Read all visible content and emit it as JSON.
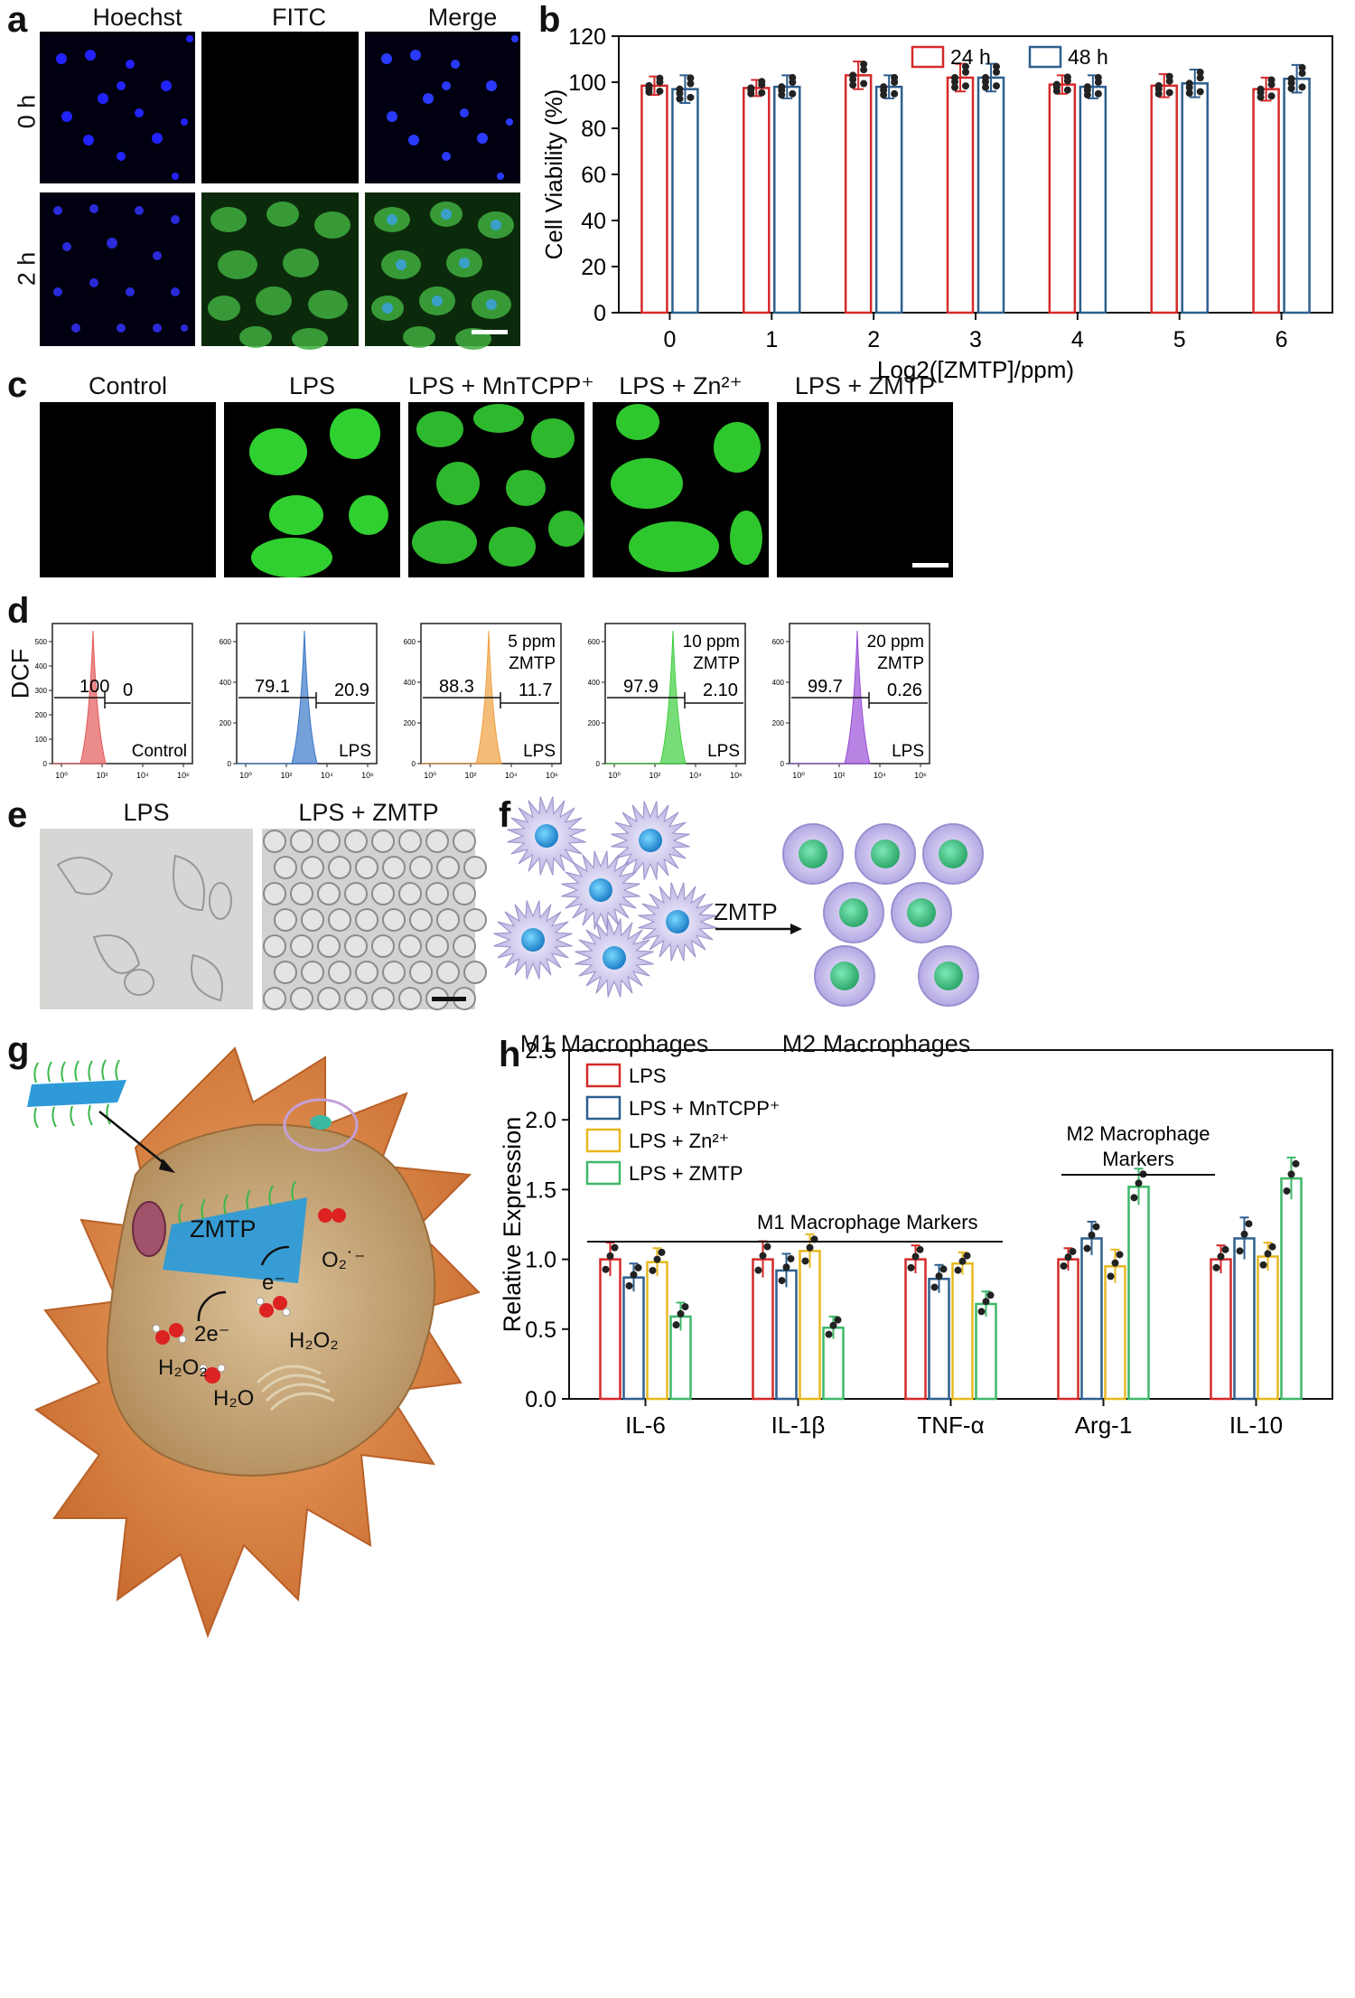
{
  "panel_a": {
    "label": "a",
    "columns": [
      "Hoechst",
      "FITC",
      "Merge"
    ],
    "rows": [
      "0 h",
      "2 h"
    ]
  },
  "panel_b": {
    "label": "b",
    "chart_data": {
      "type": "bar",
      "categories": [
        "0",
        "1",
        "2",
        "3",
        "4",
        "5",
        "6"
      ],
      "series": [
        {
          "name": "24 h",
          "values": [
            98.5,
            97.5,
            103,
            102,
            99,
            98.5,
            97
          ],
          "errors": [
            4,
            3.5,
            6,
            6,
            4,
            5,
            5
          ],
          "color": "#d42a2a"
        },
        {
          "name": "48 h",
          "values": [
            97,
            98,
            98,
            102,
            98,
            99.5,
            101.5
          ],
          "errors": [
            6,
            5,
            5,
            6,
            5,
            6,
            6
          ],
          "color": "#2e5f8f"
        }
      ],
      "xlabel": "Log2([ZMTP]/ppm)",
      "ylabel": "Cell Viability (%)",
      "ylim": [
        0,
        120
      ],
      "yticks": [
        "0",
        "20",
        "40",
        "60",
        "80",
        "100",
        "120"
      ]
    }
  },
  "panel_c": {
    "label": "c",
    "titles": [
      "Control",
      "LPS",
      "LPS + MnTCPP⁺",
      "LPS + Zn²⁺",
      "LPS + ZMTP"
    ]
  },
  "panel_d": {
    "label": "d",
    "ylabel": "DCF",
    "plots": [
      {
        "left": "100",
        "right": "0",
        "annot": "",
        "annot2": "",
        "group": "Control",
        "color": "#e25a5a",
        "yticks": [
          "0",
          "100",
          "200",
          "300",
          "400",
          "500"
        ]
      },
      {
        "left": "79.1",
        "right": "20.9",
        "annot": "",
        "annot2": "",
        "group": "LPS",
        "color": "#3a78c8",
        "yticks": [
          "0",
          "200",
          "400",
          "600"
        ]
      },
      {
        "left": "88.3",
        "right": "11.7",
        "annot": "5 ppm",
        "annot2": "ZMTP",
        "group": "LPS",
        "color": "#f0a040",
        "yticks": [
          "0",
          "200",
          "400",
          "600"
        ]
      },
      {
        "left": "97.9",
        "right": "2.10",
        "annot": "10 ppm",
        "annot2": "ZMTP",
        "group": "LPS",
        "color": "#3fcf3f",
        "yticks": [
          "0",
          "200",
          "400",
          "600"
        ]
      },
      {
        "left": "99.7",
        "right": "0.26",
        "annot": "20 ppm",
        "annot2": "ZMTP",
        "group": "LPS",
        "color": "#9a4fd6",
        "yticks": [
          "0",
          "200",
          "400",
          "600"
        ]
      }
    ],
    "xticks": [
      "10⁰",
      "10²",
      "10⁴",
      "10⁶"
    ]
  },
  "panel_e": {
    "label": "e",
    "titles": [
      "LPS",
      "LPS + ZMTP"
    ]
  },
  "panel_f": {
    "label": "f",
    "arrow_label": "ZMTP",
    "left_caption": "M1 Macrophages",
    "right_caption": "M2 Macrophages"
  },
  "panel_g": {
    "label": "g",
    "zmtp": "ZMTP",
    "e_minus": "e⁻",
    "two_e": "2e⁻",
    "o2": "O₂˙⁻",
    "h2o2_right": "H₂O₂",
    "h2o2_left": "H₂O₂",
    "h2o": "H₂O"
  },
  "panel_h": {
    "label": "h",
    "chart_data": {
      "type": "bar",
      "categories": [
        "IL-6",
        "IL-1β",
        "TNF-α",
        "Arg-1",
        "IL-10"
      ],
      "series": [
        {
          "name": "LPS",
          "values": [
            1.0,
            1.0,
            1.0,
            1.0,
            1.0
          ],
          "errors": [
            0.12,
            0.13,
            0.1,
            0.08,
            0.1
          ],
          "color": "#d42a2a"
        },
        {
          "name": "LPS + MnTCPP⁺",
          "values": [
            0.87,
            0.92,
            0.86,
            1.15,
            1.15
          ],
          "errors": [
            0.1,
            0.12,
            0.1,
            0.12,
            0.15
          ],
          "color": "#2e5f8f"
        },
        {
          "name": "LPS + Zn²⁺",
          "values": [
            0.98,
            1.06,
            0.97,
            0.95,
            1.02
          ],
          "errors": [
            0.1,
            0.12,
            0.08,
            0.12,
            0.1
          ],
          "color": "#e8b820"
        },
        {
          "name": "LPS + ZMTP",
          "values": [
            0.59,
            0.51,
            0.68,
            1.52,
            1.58
          ],
          "errors": [
            0.1,
            0.08,
            0.09,
            0.13,
            0.15
          ],
          "color": "#3fb86a"
        }
      ],
      "ylabel": "Relative Expression",
      "ylim": [
        0,
        2.5
      ],
      "yticks": [
        "0.0",
        "0.5",
        "1.0",
        "1.5",
        "2.0",
        "2.5"
      ],
      "annotations": [
        "M1 Macrophage Markers",
        "M2 Macrophage",
        "Markers"
      ]
    }
  }
}
